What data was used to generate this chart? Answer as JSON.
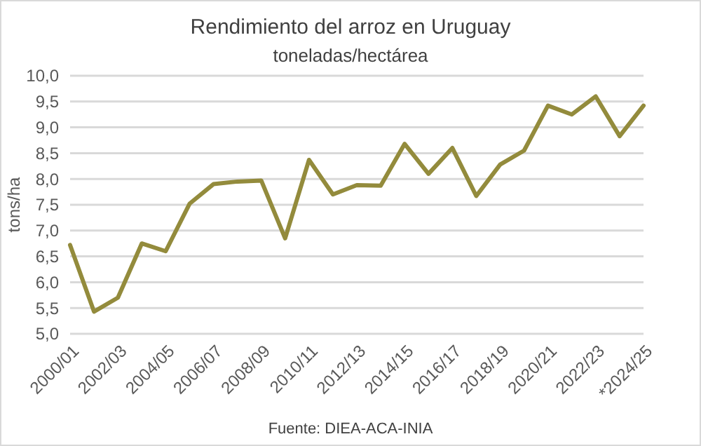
{
  "chart_data": {
    "type": "line",
    "title": "Rendimiento del arroz en Uruguay",
    "subtitle": "toneladas/hectárea",
    "ylabel": "tons/ha",
    "categories": [
      "2000/01",
      null,
      "2002/03",
      null,
      "2004/05",
      null,
      "2006/07",
      null,
      "2008/09",
      null,
      "2010/11",
      null,
      "2012/13",
      null,
      "2014/15",
      null,
      "2016/17",
      null,
      "2018/19",
      null,
      "2020/21",
      null,
      "2022/23",
      null,
      "*2024/25"
    ],
    "series": [
      {
        "color": "#938b3c",
        "values": [
          6.72,
          5.43,
          5.7,
          6.75,
          6.6,
          7.52,
          7.9,
          7.95,
          7.97,
          6.85,
          8.37,
          7.7,
          7.88,
          7.87,
          8.68,
          8.1,
          8.6,
          7.67,
          8.28,
          8.55,
          9.42,
          9.25,
          9.6,
          8.83,
          9.42
        ]
      }
    ],
    "ylim": [
      5,
      10
    ],
    "yticks": [
      {
        "value": 5,
        "label": "5,0"
      },
      {
        "value": 5.5,
        "label": "5,5"
      },
      {
        "value": 6,
        "label": "6,0"
      },
      {
        "value": 6.5,
        "label": "6,5"
      },
      {
        "value": 7,
        "label": "7,0"
      },
      {
        "value": 7.5,
        "label": "7,5"
      },
      {
        "value": 8,
        "label": "8,0"
      },
      {
        "value": 8.5,
        "label": "8,5"
      },
      {
        "value": 9,
        "label": "9,0"
      },
      {
        "value": 9.5,
        "label": "9,5"
      },
      {
        "value": 10,
        "label": "10,0"
      }
    ],
    "grid": "y",
    "marker": "none",
    "line_style": "solid",
    "annotations": [
      "Fuente: DIEA-ACA-INIA"
    ]
  }
}
